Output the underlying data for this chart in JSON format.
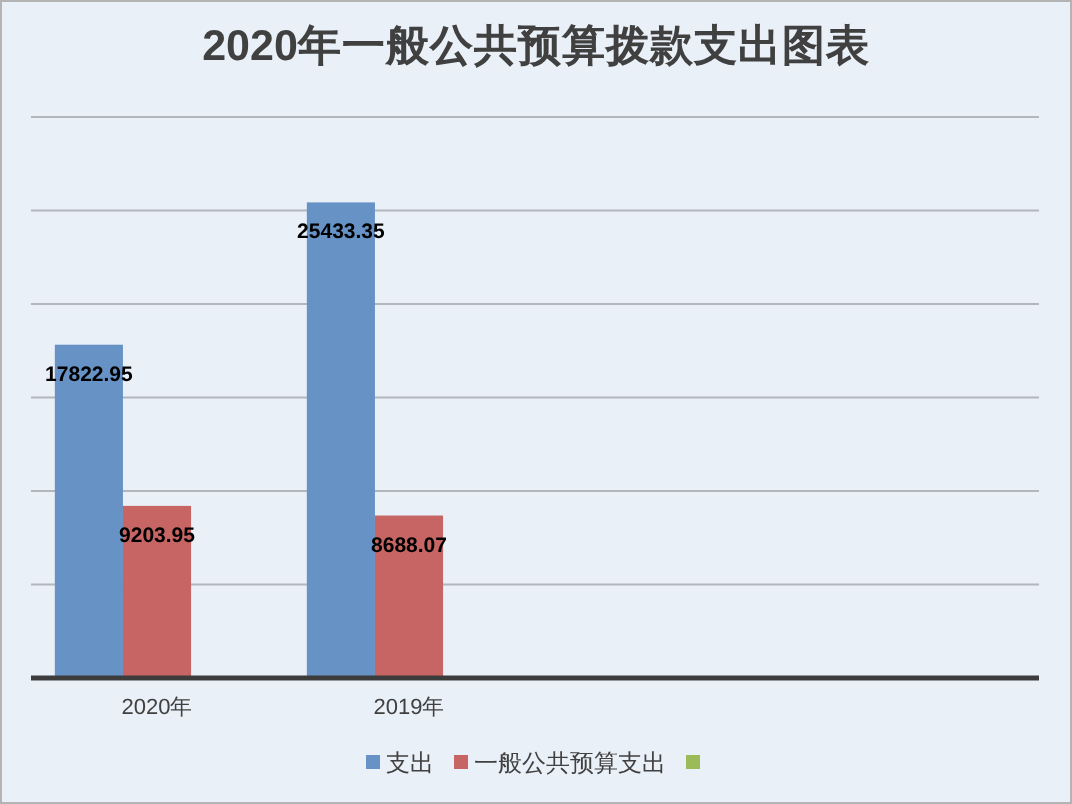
{
  "chart_data": {
    "type": "bar",
    "title": "2020年一般公共预算拨款支出图表",
    "categories": [
      "2020年",
      "2019年",
      null,
      null
    ],
    "series": [
      {
        "name": "支出",
        "color": "#6692c5",
        "values": [
          17822.95,
          25433.35,
          null,
          null
        ]
      },
      {
        "name": "一般公共预算支出",
        "color": "#c66563",
        "values": [
          9203.95,
          8688.07,
          null,
          null
        ]
      },
      {
        "color": "#9bbb59",
        "values": [
          null,
          null,
          null,
          null
        ]
      }
    ],
    "ylim": [
      0,
      30000
    ],
    "yticks": [
      {
        "value": 0,
        "label": null
      },
      {
        "value": 5000,
        "label": null
      },
      {
        "value": 10000,
        "label": null
      },
      {
        "value": 15000,
        "label": null
      },
      {
        "value": 20000,
        "label": null
      },
      {
        "value": 25000,
        "label": null
      },
      {
        "value": 30000,
        "label": null
      }
    ],
    "tick_labels": "x",
    "grid": "y",
    "legend": "bottom",
    "data_labels": true
  }
}
